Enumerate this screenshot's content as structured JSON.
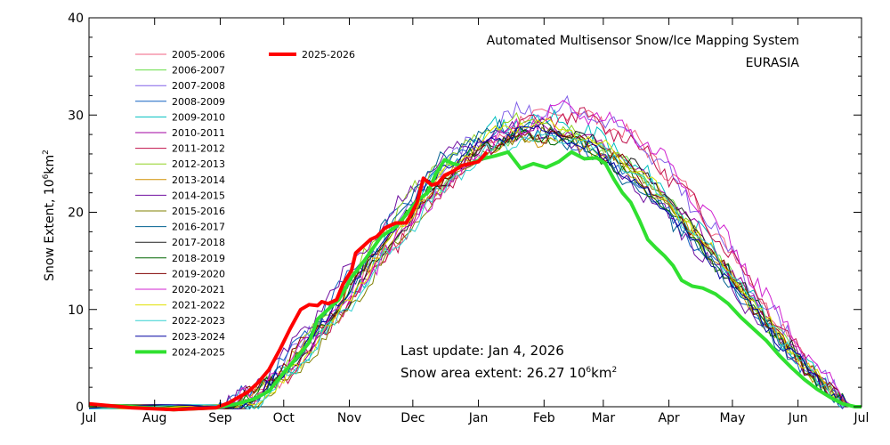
{
  "chart_data": {
    "type": "line",
    "title": "Automated  Multisensor Snow/Ice Mapping System",
    "subtitle": "EURASIA",
    "ylabel": "Snow Extent, 10",
    "ylabel_exp": "6",
    "ylabel_unit": "km",
    "ylabel_unit_exp": "2",
    "ylim": [
      0,
      40
    ],
    "yticks": [
      0,
      10,
      20,
      30,
      40
    ],
    "xlim": [
      0,
      365
    ],
    "months": [
      {
        "label": "Jul",
        "day": 0
      },
      {
        "label": "Aug",
        "day": 31
      },
      {
        "label": "Sep",
        "day": 62
      },
      {
        "label": "Oct",
        "day": 92
      },
      {
        "label": "Nov",
        "day": 123
      },
      {
        "label": "Dec",
        "day": 153
      },
      {
        "label": "Jan",
        "day": 184
      },
      {
        "label": "Feb",
        "day": 215
      },
      {
        "label": "Mar",
        "day": 243
      },
      {
        "label": "Apr",
        "day": 274
      },
      {
        "label": "May",
        "day": 304
      },
      {
        "label": "Jun",
        "day": 335
      },
      {
        "label": "Jul",
        "day": 365
      }
    ],
    "grid": false,
    "legend_position": "top-left",
    "annotation_update": "Last update: Jan  4, 2026",
    "annotation_extent": "Snow area extent: 26.27 10",
    "annotation_extent_exp": "6",
    "annotation_extent_unit": "km",
    "annotation_extent_unit_exp": "2",
    "background_series": [
      {
        "name": "2005-2006",
        "color": "#f06080",
        "peak": 30.2,
        "peak_day": 225,
        "amp": 0.8
      },
      {
        "name": "2006-2007",
        "color": "#66dd44",
        "peak": 28.0,
        "peak_day": 215,
        "amp": 0.6
      },
      {
        "name": "2007-2008",
        "color": "#8060e8",
        "peak": 30.8,
        "peak_day": 220,
        "amp": 0.9
      },
      {
        "name": "2008-2009",
        "color": "#1060c0",
        "peak": 28.2,
        "peak_day": 205,
        "amp": 0.7
      },
      {
        "name": "2009-2010",
        "color": "#00c0c0",
        "peak": 29.5,
        "peak_day": 210,
        "amp": 0.9
      },
      {
        "name": "2010-2011",
        "color": "#a000a0",
        "peak": 28.6,
        "peak_day": 215,
        "amp": 0.6
      },
      {
        "name": "2011-2012",
        "color": "#c0104a",
        "peak": 29.8,
        "peak_day": 225,
        "amp": 0.8
      },
      {
        "name": "2012-2013",
        "color": "#90d020",
        "peak": 29.2,
        "peak_day": 205,
        "amp": 0.7
      },
      {
        "name": "2013-2014",
        "color": "#d09000",
        "peak": 27.6,
        "peak_day": 212,
        "amp": 0.6
      },
      {
        "name": "2014-2015",
        "color": "#7010a0",
        "peak": 28.4,
        "peak_day": 200,
        "amp": 0.7
      },
      {
        "name": "2015-2016",
        "color": "#808000",
        "peak": 28.0,
        "peak_day": 215,
        "amp": 0.6
      },
      {
        "name": "2016-2017",
        "color": "#006090",
        "peak": 28.8,
        "peak_day": 200,
        "amp": 0.8
      },
      {
        "name": "2017-2018",
        "color": "#202020",
        "peak": 28.5,
        "peak_day": 215,
        "amp": 0.6
      },
      {
        "name": "2018-2019",
        "color": "#006600",
        "peak": 27.8,
        "peak_day": 208,
        "amp": 0.6
      },
      {
        "name": "2019-2020",
        "color": "#800000",
        "peak": 28.2,
        "peak_day": 212,
        "amp": 0.7
      },
      {
        "name": "2020-2021",
        "color": "#d020d0",
        "peak": 30.2,
        "peak_day": 230,
        "amp": 0.9
      },
      {
        "name": "2021-2022",
        "color": "#e0e000",
        "peak": 29.0,
        "peak_day": 210,
        "amp": 0.6
      },
      {
        "name": "2022-2023",
        "color": "#30d0d0",
        "peak": 27.8,
        "peak_day": 215,
        "amp": 0.7
      },
      {
        "name": "2023-2024",
        "color": "#0000a0",
        "peak": 28.3,
        "peak_day": 205,
        "amp": 0.6
      }
    ],
    "series_2024_2025": {
      "name": "2024-2025",
      "color": "#30e030",
      "x": [
        0,
        20,
        40,
        60,
        70,
        78,
        85,
        92,
        98,
        104,
        108,
        112,
        118,
        124,
        130,
        138,
        145,
        150,
        155,
        160,
        164,
        168,
        172,
        176,
        180,
        186,
        192,
        198,
        204,
        210,
        216,
        222,
        228,
        234,
        240,
        244,
        248,
        252,
        256,
        260,
        264,
        268,
        272,
        276,
        280,
        285,
        290,
        296,
        302,
        308,
        314,
        320,
        326,
        332,
        338,
        344,
        350,
        356,
        362,
        365
      ],
      "y": [
        0.2,
        0.0,
        -0.3,
        -0.1,
        0.3,
        0.8,
        1.6,
        3.5,
        5.0,
        6.6,
        9.0,
        9.8,
        11.0,
        13.3,
        15.0,
        17.5,
        18.5,
        19.8,
        21.2,
        22.0,
        24.0,
        25.4,
        25.0,
        24.8,
        25.0,
        25.5,
        25.8,
        26.2,
        24.5,
        25.0,
        24.6,
        25.2,
        26.2,
        25.5,
        25.6,
        25.0,
        23.4,
        22.0,
        21.0,
        19.2,
        17.2,
        16.3,
        15.5,
        14.5,
        13.0,
        12.4,
        12.2,
        11.6,
        10.6,
        9.2,
        8.0,
        6.8,
        5.3,
        4.0,
        2.8,
        1.8,
        1.0,
        0.3,
        0.0,
        0.0
      ]
    },
    "series_2025_2026": {
      "name": "2025-2026",
      "color": "#ff0000",
      "x": [
        0,
        20,
        40,
        60,
        66,
        70,
        75,
        80,
        85,
        90,
        95,
        100,
        104,
        108,
        110,
        113,
        117,
        120,
        124,
        126,
        130,
        133,
        136,
        140,
        145,
        150,
        155,
        158,
        162,
        165,
        168,
        172,
        176,
        180,
        184,
        188
      ],
      "y": [
        0.3,
        -0.1,
        -0.3,
        -0.1,
        0.4,
        0.9,
        1.5,
        2.5,
        3.8,
        5.8,
        8.0,
        10.0,
        10.5,
        10.4,
        10.8,
        10.6,
        11.0,
        12.6,
        14.0,
        15.8,
        16.6,
        17.2,
        17.5,
        18.4,
        18.9,
        18.9,
        21.0,
        23.5,
        22.8,
        23.0,
        23.8,
        24.2,
        24.8,
        25.0,
        25.2,
        26.2
      ]
    }
  }
}
